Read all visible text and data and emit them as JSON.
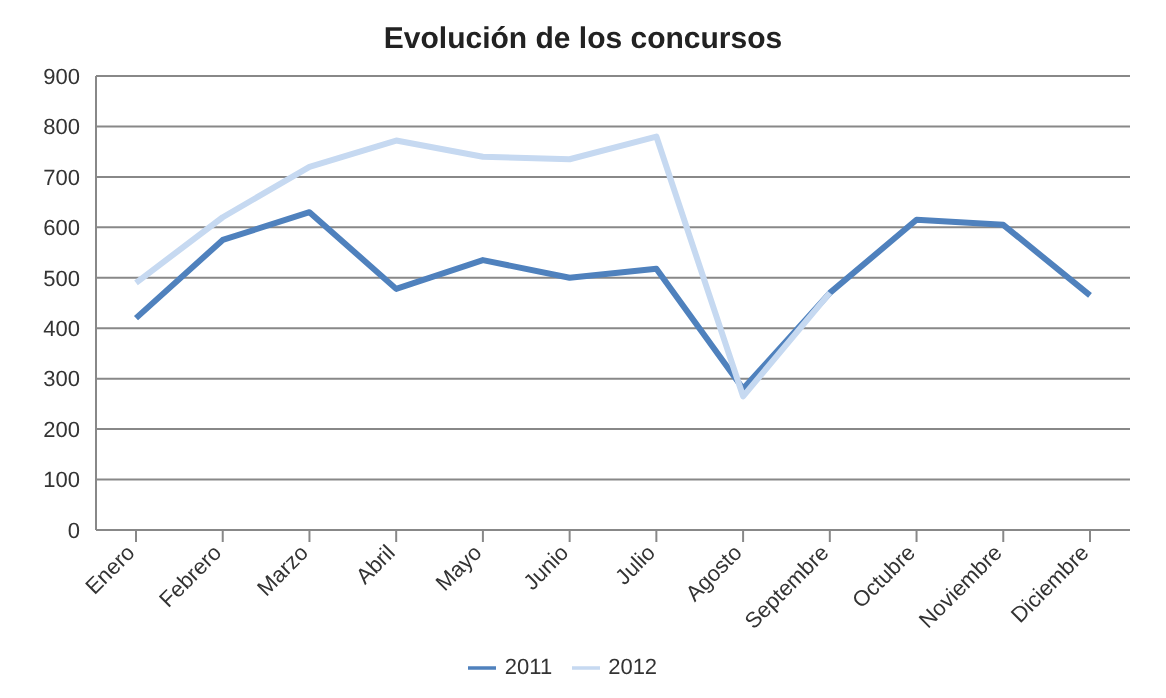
{
  "chart_data": {
    "type": "line",
    "title": "Evolución de los concursos",
    "categories": [
      "Enero",
      "Febrero",
      "Marzo",
      "Abril",
      "Mayo",
      "Junio",
      "Julio",
      "Agosto",
      "Septembre",
      "Octubre",
      "Noviembre",
      "Diciembre"
    ],
    "series": [
      {
        "name": "2011",
        "color": "#4f81bd",
        "values": [
          420,
          575,
          630,
          478,
          535,
          500,
          518,
          280,
          470,
          615,
          605,
          465
        ]
      },
      {
        "name": "2012",
        "color": "#c6d9f1",
        "values": [
          490,
          620,
          720,
          772,
          740,
          735,
          780,
          265,
          470,
          null,
          null,
          null
        ]
      }
    ],
    "ylim": [
      0,
      900
    ],
    "yticks": [
      0,
      100,
      200,
      300,
      400,
      500,
      600,
      700,
      800,
      900
    ],
    "grid": "y",
    "legend": "bottom",
    "marker": "none",
    "line_style": "solid"
  }
}
